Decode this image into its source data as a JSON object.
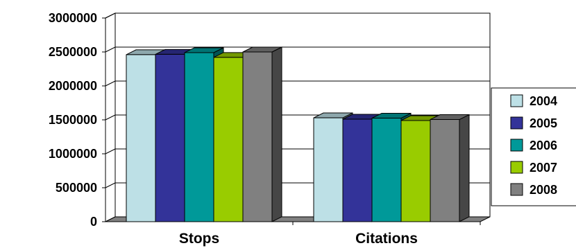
{
  "chart_data": {
    "type": "bar",
    "categories": [
      "Stops",
      "Citations"
    ],
    "series": [
      {
        "name": "2004",
        "values": [
          2460000,
          1530000
        ],
        "color": "#BDE0E6"
      },
      {
        "name": "2005",
        "values": [
          2465000,
          1510000
        ],
        "color": "#333399"
      },
      {
        "name": "2006",
        "values": [
          2490000,
          1525000
        ],
        "color": "#009999"
      },
      {
        "name": "2007",
        "values": [
          2420000,
          1490000
        ],
        "color": "#99CC00"
      },
      {
        "name": "2008",
        "values": [
          2500000,
          1505000
        ],
        "color": "#808080"
      }
    ],
    "ylim": [
      0,
      3000000
    ],
    "yticks": [
      "0",
      "500000",
      "1000000",
      "1500000",
      "2000000",
      "2500000",
      "3000000"
    ],
    "title": "",
    "xlabel": "",
    "ylabel": "",
    "grid": true,
    "legend_position": "right",
    "style": "3d-clustered-column"
  }
}
